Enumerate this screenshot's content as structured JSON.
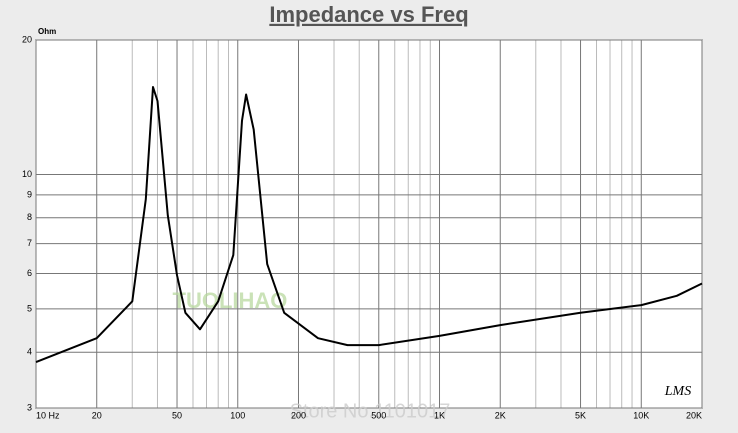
{
  "chart_data": {
    "type": "line",
    "title": "Impedance vs Freq",
    "y_unit": "Ohm",
    "logo": "LMS",
    "watermarks": [
      "TUOLIHAO",
      "Store No.1101017"
    ],
    "x": [
      10,
      20,
      30,
      35,
      38,
      40,
      45,
      50,
      55,
      65,
      80,
      95,
      105,
      110,
      120,
      140,
      170,
      250,
      350,
      500,
      1000,
      2000,
      5000,
      10000,
      15000,
      20000
    ],
    "series": [
      {
        "name": "Impedance",
        "color": "#000000",
        "values": [
          3.8,
          4.3,
          5.2,
          8.8,
          15.7,
          14.6,
          8.1,
          5.95,
          4.9,
          4.5,
          5.2,
          6.6,
          13.2,
          15.1,
          12.6,
          6.3,
          4.9,
          4.3,
          4.15,
          4.15,
          4.35,
          4.6,
          4.9,
          5.1,
          5.35,
          5.7
        ]
      }
    ],
    "xlim": [
      10,
      20000
    ],
    "ylim": [
      3,
      20
    ],
    "xlog": true,
    "ylog": true,
    "grid": true,
    "xticks": [
      {
        "value": 10,
        "label": "10 Hz"
      },
      20,
      50,
      100,
      200,
      500,
      {
        "value": 1000,
        "label": "1K"
      },
      {
        "value": 2000,
        "label": "2K"
      },
      {
        "value": 5000,
        "label": "5K"
      },
      {
        "value": 10000,
        "label": "10K"
      },
      {
        "value": 20000,
        "label": "20K"
      }
    ],
    "xminorticks": [
      30,
      40,
      60,
      70,
      80,
      90,
      300,
      400,
      600,
      700,
      800,
      900,
      3000,
      4000,
      6000,
      7000,
      8000,
      9000
    ],
    "yticks": [
      3,
      4,
      5,
      6,
      7,
      8,
      9,
      10,
      20
    ]
  }
}
